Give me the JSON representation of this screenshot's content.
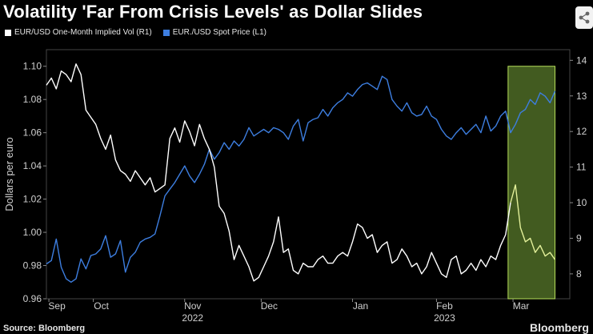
{
  "title": "Volatility 'Far From Crisis Levels' as Dollar Slides",
  "source": "Source: Bloomberg",
  "brand": "Bloomberg",
  "share_icon": "share-icon",
  "colors": {
    "spot": "#3d7ee0",
    "vol": "#ffffff",
    "vol_highlight": "#e3f09a",
    "highlight_box_fill": "#4e6b26",
    "highlight_box_stroke": "#b7e05a",
    "axis_text": "#d0d0d0",
    "grid": "#555555"
  },
  "chart_data": {
    "type": "line",
    "title": "Volatility 'Far From Crisis Levels' as Dollar Slides",
    "left_axis": {
      "label": "Dollars per euro",
      "min": 0.96,
      "max": 1.11,
      "ticks": [
        "0.96",
        "0.98",
        "1.00",
        "1.02",
        "1.04",
        "1.06",
        "1.08",
        "1.10"
      ]
    },
    "right_axis": {
      "label": "",
      "min": 7.3,
      "max": 14.3,
      "ticks": [
        "8",
        "9",
        "10",
        "11",
        "12",
        "13",
        "14"
      ]
    },
    "x_axis": {
      "min": 0,
      "max": 212,
      "months": [
        {
          "label": "Sep",
          "x": 1
        },
        {
          "label": "Oct",
          "x": 19
        },
        {
          "label": "Nov",
          "x": 56
        },
        {
          "label": "Dec",
          "x": 87
        },
        {
          "label": "Jan",
          "x": 124
        },
        {
          "label": "Feb",
          "x": 158
        },
        {
          "label": "Mar",
          "x": 189
        }
      ],
      "years": [
        {
          "label": "2022",
          "x": 56
        },
        {
          "label": "2023",
          "x": 158
        }
      ]
    },
    "highlight": {
      "x_start": 187,
      "x_end": 206,
      "left_start": 0.96,
      "left_end": 1.1
    },
    "series": [
      {
        "name": "EUR./USD Spot Price (L1)",
        "axis": "left",
        "color": "#3d7ee0",
        "x": [
          0,
          2,
          4,
          6,
          8,
          10,
          12,
          14,
          16,
          18,
          20,
          22,
          24,
          26,
          28,
          30,
          32,
          34,
          36,
          38,
          40,
          42,
          44,
          46,
          48,
          50,
          52,
          54,
          56,
          58,
          60,
          62,
          64,
          66,
          68,
          70,
          72,
          74,
          76,
          78,
          80,
          82,
          84,
          86,
          88,
          90,
          92,
          94,
          96,
          98,
          100,
          102,
          104,
          106,
          108,
          110,
          112,
          114,
          116,
          118,
          120,
          122,
          124,
          126,
          128,
          130,
          132,
          134,
          136,
          138,
          140,
          142,
          144,
          146,
          148,
          150,
          152,
          154,
          156,
          158,
          160,
          162,
          164,
          166,
          168,
          170,
          172,
          174,
          176,
          178,
          180,
          182,
          184,
          186,
          188,
          190,
          192,
          194,
          196,
          198,
          200,
          202,
          204,
          206
        ],
        "values": [
          0.981,
          0.983,
          0.996,
          0.979,
          0.972,
          0.97,
          0.972,
          0.984,
          0.978,
          0.986,
          0.987,
          0.99,
          0.998,
          0.985,
          0.987,
          0.995,
          0.976,
          0.985,
          0.988,
          0.994,
          0.996,
          0.997,
          0.999,
          1.01,
          1.022,
          1.026,
          1.03,
          1.035,
          1.04,
          1.034,
          1.03,
          1.035,
          1.041,
          1.05,
          1.044,
          1.048,
          1.054,
          1.05,
          1.055,
          1.052,
          1.056,
          1.063,
          1.058,
          1.06,
          1.062,
          1.06,
          1.063,
          1.062,
          1.06,
          1.056,
          1.064,
          1.068,
          1.055,
          1.066,
          1.068,
          1.069,
          1.074,
          1.07,
          1.075,
          1.078,
          1.08,
          1.084,
          1.082,
          1.086,
          1.089,
          1.09,
          1.088,
          1.086,
          1.094,
          1.092,
          1.08,
          1.076,
          1.073,
          1.078,
          1.072,
          1.07,
          1.071,
          1.076,
          1.07,
          1.068,
          1.062,
          1.058,
          1.056,
          1.06,
          1.063,
          1.059,
          1.062,
          1.065,
          1.06,
          1.07,
          1.061,
          1.064,
          1.07,
          1.073,
          1.06,
          1.065,
          1.072,
          1.074,
          1.08,
          1.077,
          1.084,
          1.082,
          1.078,
          1.085
        ]
      },
      {
        "name": "EUR/USD One-Month Implied Vol (R1)",
        "axis": "right",
        "color": "#ffffff",
        "x": [
          0,
          2,
          4,
          6,
          8,
          10,
          12,
          14,
          16,
          18,
          20,
          22,
          24,
          26,
          28,
          30,
          32,
          34,
          36,
          38,
          40,
          42,
          44,
          46,
          48,
          50,
          52,
          54,
          56,
          58,
          60,
          62,
          64,
          66,
          68,
          70,
          72,
          74,
          76,
          78,
          80,
          82,
          84,
          86,
          88,
          90,
          92,
          94,
          96,
          98,
          100,
          102,
          104,
          106,
          108,
          110,
          112,
          114,
          116,
          118,
          120,
          122,
          124,
          126,
          128,
          130,
          132,
          134,
          136,
          138,
          140,
          142,
          144,
          146,
          148,
          150,
          152,
          154,
          156,
          158,
          160,
          162,
          164,
          166,
          168,
          170,
          172,
          174,
          176,
          178,
          180,
          182,
          184,
          186,
          188,
          190,
          192,
          194,
          196,
          198,
          200,
          202,
          204,
          206
        ],
        "values": [
          13.3,
          13.5,
          13.2,
          13.7,
          13.6,
          13.4,
          13.9,
          13.6,
          12.6,
          12.4,
          12.2,
          11.8,
          11.5,
          11.9,
          11.2,
          10.9,
          10.8,
          10.6,
          10.9,
          10.7,
          10.5,
          10.7,
          10.3,
          10.4,
          10.5,
          11.8,
          12.1,
          11.7,
          12.3,
          12.0,
          11.6,
          12.2,
          11.8,
          11.5,
          11.0,
          9.9,
          9.7,
          9.2,
          8.4,
          8.8,
          8.5,
          8.2,
          7.8,
          7.9,
          8.2,
          8.5,
          8.9,
          9.6,
          8.6,
          8.7,
          8.1,
          8.0,
          8.3,
          8.2,
          8.2,
          8.4,
          8.5,
          8.3,
          8.3,
          8.5,
          8.6,
          8.5,
          8.9,
          9.4,
          9.3,
          9.0,
          9.1,
          8.6,
          8.8,
          8.9,
          8.3,
          8.4,
          8.7,
          8.5,
          8.2,
          8.3,
          8.0,
          8.2,
          8.6,
          8.3,
          8.0,
          7.9,
          8.4,
          8.5,
          8.0,
          8.1,
          8.3,
          8.1,
          8.4,
          8.2,
          8.5,
          8.4,
          8.8,
          9.1,
          10.0,
          10.5,
          9.3,
          8.9,
          9.0,
          8.6,
          8.8,
          8.5,
          8.6,
          8.4
        ],
        "highlight_color": "#e3f09a"
      }
    ]
  }
}
